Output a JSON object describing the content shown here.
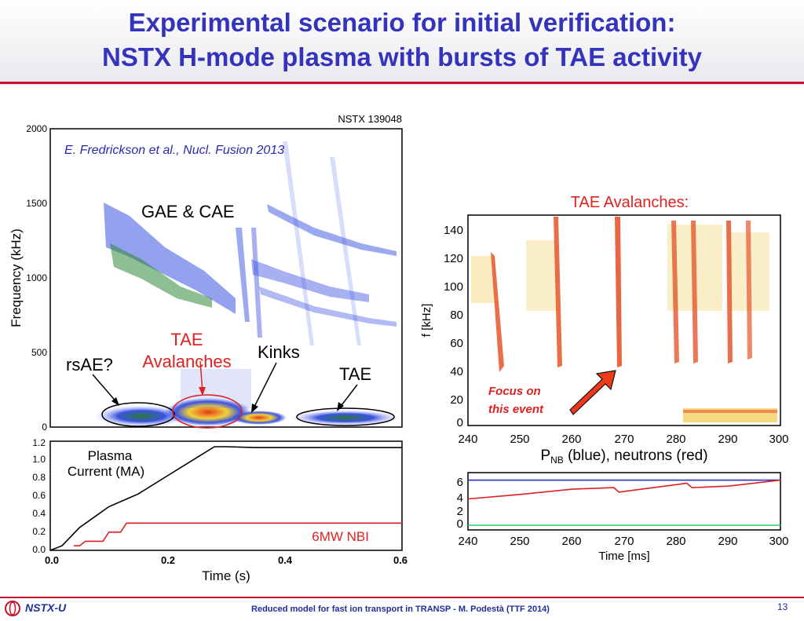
{
  "slide": {
    "title_line1": "Experimental scenario for initial verification:",
    "title_line2": "NSTX H-mode plasma with bursts of TAE activity",
    "footer": "Reduced model for fast ion transport in TRANSP - M. Podestà (TTF 2014)",
    "page_number": "13",
    "logo_text": "NSTX-U",
    "accent_color": "#c8102e",
    "title_color": "#3333bb"
  },
  "chart_data": [
    {
      "type": "heatmap",
      "panel": "left-top",
      "shot_label": "NSTX 139048",
      "citation": "E. Fredrickson et al., Nucl. Fusion 2013",
      "xlabel": "",
      "ylabel": "Frequency (kHz)",
      "xlim": [
        0.0,
        0.6
      ],
      "ylim": [
        0,
        2000
      ],
      "yticks": [
        "0",
        "500",
        "1000",
        "1500",
        "2000"
      ],
      "annotations": [
        "GAE & CAE",
        "TAE",
        "Avalanches",
        "rsAE?",
        "Kinks",
        "TAE"
      ]
    },
    {
      "type": "line",
      "panel": "left-bottom",
      "xlabel": "Time (s)",
      "xlim": [
        0.0,
        0.6
      ],
      "ylim": [
        0.0,
        1.2
      ],
      "xticks": [
        "0.0",
        "0.2",
        "0.4",
        "0.6"
      ],
      "yticks": [
        "0.0",
        "0.2",
        "0.4",
        "0.6",
        "0.8",
        "1.0",
        "1.2"
      ],
      "annotations": [
        "Plasma",
        "Current (MA)",
        "6MW NBI"
      ],
      "series": [
        {
          "color": "#000000",
          "x": [
            0.0,
            0.02,
            0.05,
            0.1,
            0.15,
            0.2,
            0.25,
            0.28,
            0.3,
            0.35,
            0.4,
            0.5,
            0.6
          ],
          "y": [
            0.0,
            0.05,
            0.25,
            0.48,
            0.62,
            0.82,
            1.02,
            1.14,
            1.14,
            1.13,
            1.13,
            1.13,
            1.13
          ]
        },
        {
          "color": "#dd2222",
          "x": [
            0.04,
            0.05,
            0.06,
            0.09,
            0.1,
            0.12,
            0.13,
            0.6
          ],
          "y": [
            0.05,
            0.05,
            0.1,
            0.1,
            0.2,
            0.2,
            0.3,
            0.3
          ]
        }
      ]
    },
    {
      "type": "heatmap",
      "panel": "right-top",
      "title": "TAE Avalanches:",
      "ylabel": "f [kHz]",
      "xlim": [
        240,
        300
      ],
      "ylim": [
        0,
        150
      ],
      "xticks": [
        "240",
        "250",
        "260",
        "270",
        "280",
        "290",
        "300"
      ],
      "yticks": [
        "0",
        "20",
        "40",
        "60",
        "80",
        "100",
        "120",
        "140"
      ],
      "caption_main": "P",
      "caption_sub": "NB",
      "caption_rest": " (blue), neutrons (red)",
      "annotation_line1": "Focus on",
      "annotation_line2": "this event"
    },
    {
      "type": "line",
      "panel": "right-bottom",
      "xlabel": "Time [ms]",
      "xlim": [
        240,
        300
      ],
      "ylim": [
        0,
        7
      ],
      "xticks": [
        "240",
        "250",
        "260",
        "270",
        "280",
        "290",
        "300"
      ],
      "yticks": [
        "0",
        "2",
        "4",
        "6"
      ],
      "series": [
        {
          "color": "#2233cc",
          "x": [
            240,
            300
          ],
          "y": [
            6.0,
            6.0
          ]
        },
        {
          "color": "#dd2222",
          "x": [
            240,
            250,
            260,
            268,
            269,
            270,
            280,
            282,
            283,
            290,
            300
          ],
          "y": [
            3.5,
            4.1,
            4.8,
            5.0,
            4.4,
            4.5,
            5.4,
            5.6,
            5.0,
            5.2,
            6.0
          ]
        },
        {
          "color": "#22cc66",
          "x": [
            240,
            300
          ],
          "y": [
            0.0,
            0.0
          ]
        }
      ]
    }
  ]
}
